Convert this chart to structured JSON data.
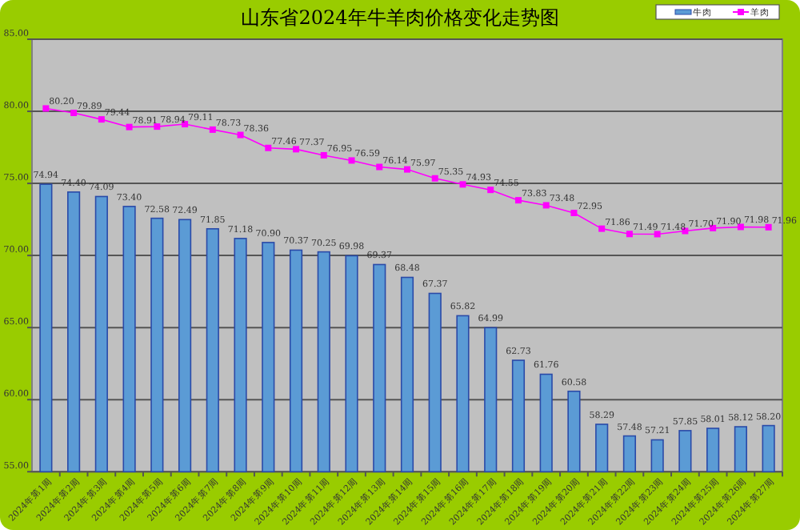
{
  "chart_data": {
    "type": "bar",
    "title": "山东省2024年牛羊肉价格变化走势图",
    "categories": [
      "2024年第1周",
      "2024年第2周",
      "2024年第3周",
      "2024年第4周",
      "2024年第5周",
      "2024年第6周",
      "2024年第7周",
      "2024年第8周",
      "2024年第9周",
      "2024年第10周",
      "2024年第11周",
      "2024年第12周",
      "2024年第13周",
      "2024年第14周",
      "2024年第15周",
      "2024年第16周",
      "2024年第17周",
      "2024年第18周",
      "2024年第19周",
      "2024年第20周",
      "2024年第21周",
      "2024年第22周",
      "2024年第23周",
      "2024年第24周",
      "2024年第25周",
      "2024年第26周",
      "2024年第27周"
    ],
    "series": [
      {
        "name": "牛肉",
        "color": "#5b9bd5",
        "values": [
          74.94,
          74.4,
          74.09,
          73.4,
          72.58,
          72.49,
          71.85,
          71.18,
          70.9,
          70.37,
          70.25,
          69.98,
          69.37,
          68.48,
          67.37,
          65.82,
          64.99,
          62.73,
          61.76,
          60.58,
          58.29,
          57.48,
          57.21,
          57.85,
          58.01,
          58.12,
          58.2
        ],
        "value_labels": [
          "74.94",
          "74.40",
          "74.09",
          "73.40",
          "72.58",
          "72.49",
          "71.85",
          "71.18",
          "70.90",
          "70.37",
          "70.25",
          "69.98",
          "69.37",
          "68.48",
          "67.37",
          "65.82",
          "64.99",
          "62.73",
          "61.76",
          "60.58",
          "58.29",
          "57.48",
          "57.21",
          "57.85",
          "58.01",
          "58.12",
          "58.20"
        ]
      },
      {
        "name": "羊肉",
        "type": "line",
        "color": "#ff00ff",
        "values": [
          80.2,
          79.89,
          79.44,
          78.91,
          78.94,
          79.11,
          78.73,
          78.36,
          77.46,
          77.37,
          76.95,
          76.59,
          76.14,
          75.97,
          75.35,
          74.93,
          74.55,
          73.83,
          73.48,
          72.95,
          71.86,
          71.49,
          71.48,
          71.7,
          71.9,
          71.98,
          71.96
        ],
        "value_labels": [
          "80.20",
          "79.89",
          "79.44",
          "78.91",
          "78.94",
          "79.11",
          "78.73",
          "78.36",
          "77.46",
          "77.37",
          "76.95",
          "76.59",
          "76.14",
          "75.97",
          "75.35",
          "74.93",
          "74.55",
          "73.83",
          "73.48",
          "72.95",
          "71.86",
          "71.49",
          "71.48",
          "71.70",
          "71.90",
          "71.98",
          "71.96"
        ]
      }
    ],
    "ylim": [
      55,
      85
    ],
    "yticks": [
      {
        "value": 55,
        "label": "55.00"
      },
      {
        "value": 60,
        "label": "60.00"
      },
      {
        "value": 65,
        "label": "65.00"
      },
      {
        "value": 70,
        "label": "70.00"
      },
      {
        "value": 75,
        "label": "75.00"
      },
      {
        "value": 80,
        "label": "80.00"
      },
      {
        "value": 85,
        "label": "85.00"
      }
    ],
    "grid": "y",
    "legend": "top right",
    "marker": "square"
  }
}
